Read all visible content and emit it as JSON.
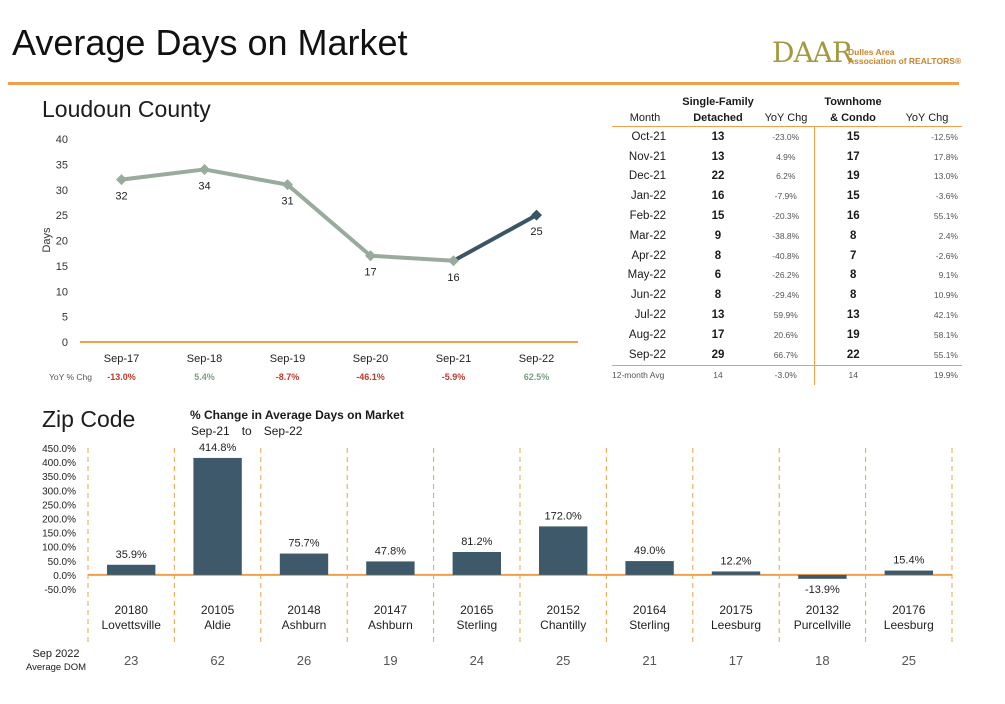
{
  "title": "Average Days on Market",
  "logo": {
    "mark": "DAAR",
    "line1": "Dulles Area",
    "line2": "Association of REALTORS®"
  },
  "colors": {
    "accent": "#f0a04b",
    "line_grey": "#98ab9d",
    "line_dark": "#3b5565",
    "bar": "#3e5a6a",
    "neg": "#c0392b",
    "pos": "#7aa184"
  },
  "loudoun": {
    "title": "Loudoun County",
    "yoy_label": "YoY % Chg",
    "yoy": [
      "-13.0%",
      "5.4%",
      "-8.7%",
      "-46.1%",
      "-5.9%",
      "62.5%"
    ]
  },
  "table": {
    "headers": {
      "month": "Month",
      "sfd": "Single-Family Detached",
      "sfd_l1": "Single-Family",
      "sfd_l2": "Detached",
      "yoy1": "YoY Chg",
      "th_l1": "Townhome",
      "th_l2": "& Condo",
      "yoy2": "YoY Chg"
    },
    "rows": [
      {
        "month": "Oct-21",
        "sfd": "13",
        "sfd_chg": "-23.0%",
        "th": "15",
        "th_chg": "-12.5%"
      },
      {
        "month": "Nov-21",
        "sfd": "13",
        "sfd_chg": "4.9%",
        "th": "17",
        "th_chg": "17.8%"
      },
      {
        "month": "Dec-21",
        "sfd": "22",
        "sfd_chg": "6.2%",
        "th": "19",
        "th_chg": "13.0%"
      },
      {
        "month": "Jan-22",
        "sfd": "16",
        "sfd_chg": "-7.9%",
        "th": "15",
        "th_chg": "-3.6%"
      },
      {
        "month": "Feb-22",
        "sfd": "15",
        "sfd_chg": "-20.3%",
        "th": "16",
        "th_chg": "55.1%"
      },
      {
        "month": "Mar-22",
        "sfd": "9",
        "sfd_chg": "-38.8%",
        "th": "8",
        "th_chg": "2.4%"
      },
      {
        "month": "Apr-22",
        "sfd": "8",
        "sfd_chg": "-40.8%",
        "th": "7",
        "th_chg": "-2.6%"
      },
      {
        "month": "May-22",
        "sfd": "6",
        "sfd_chg": "-26.2%",
        "th": "8",
        "th_chg": "9.1%"
      },
      {
        "month": "Jun-22",
        "sfd": "8",
        "sfd_chg": "-29.4%",
        "th": "8",
        "th_chg": "10.9%"
      },
      {
        "month": "Jul-22",
        "sfd": "13",
        "sfd_chg": "59.9%",
        "th": "13",
        "th_chg": "42.1%"
      },
      {
        "month": "Aug-22",
        "sfd": "17",
        "sfd_chg": "20.6%",
        "th": "19",
        "th_chg": "58.1%"
      },
      {
        "month": "Sep-22",
        "sfd": "29",
        "sfd_chg": "66.7%",
        "th": "22",
        "th_chg": "55.1%"
      }
    ],
    "avg": {
      "label": "12-month Avg",
      "sfd": "14",
      "sfd_chg": "-3.0%",
      "th": "14",
      "th_chg": "19.9%"
    }
  },
  "zip": {
    "title": "Zip Code",
    "subtitle": "% Change in Average Days on Market",
    "from": "Sep-21",
    "to_word": "to",
    "to": "Sep-22",
    "dom_label_l1": "Sep 2022",
    "dom_label_l2": "Average DOM"
  },
  "chart_data": [
    {
      "type": "line",
      "title": "Loudoun County",
      "x": [
        "Sep-17",
        "Sep-18",
        "Sep-19",
        "Sep-20",
        "Sep-21",
        "Sep-22"
      ],
      "series": [
        {
          "values": [
            32,
            34,
            31,
            17,
            16,
            25
          ]
        }
      ],
      "ylabel": "Days",
      "ylim": [
        0,
        40
      ],
      "yticks": [
        0,
        5,
        10,
        15,
        20,
        25,
        30,
        35,
        40
      ]
    },
    {
      "type": "bar",
      "title": "% Change in Average Days on Market",
      "categories": [
        "20180",
        "20105",
        "20148",
        "20147",
        "20165",
        "20152",
        "20164",
        "20175",
        "20132",
        "20176"
      ],
      "towns": [
        "Lovettsville",
        "Aldie",
        "Ashburn",
        "Ashburn",
        "Sterling",
        "Chantilly",
        "Sterling",
        "Leesburg",
        "Purcellville",
        "Leesburg"
      ],
      "values": [
        35.9,
        414.8,
        75.7,
        47.8,
        81.2,
        172.0,
        49.0,
        12.2,
        -13.9,
        15.4
      ],
      "labels": [
        "35.9%",
        "414.8%",
        "75.7%",
        "47.8%",
        "81.2%",
        "172.0%",
        "49.0%",
        "12.2%",
        "-13.9%",
        "15.4%"
      ],
      "avg_dom": [
        "23",
        "62",
        "26",
        "19",
        "24",
        "25",
        "21",
        "17",
        "18",
        "25"
      ],
      "ylim": [
        -50,
        450
      ],
      "yticks": [
        "-50.0%",
        "0.0%",
        "50.0%",
        "100.0%",
        "150.0%",
        "200.0%",
        "250.0%",
        "300.0%",
        "350.0%",
        "400.0%",
        "450.0%"
      ]
    }
  ]
}
